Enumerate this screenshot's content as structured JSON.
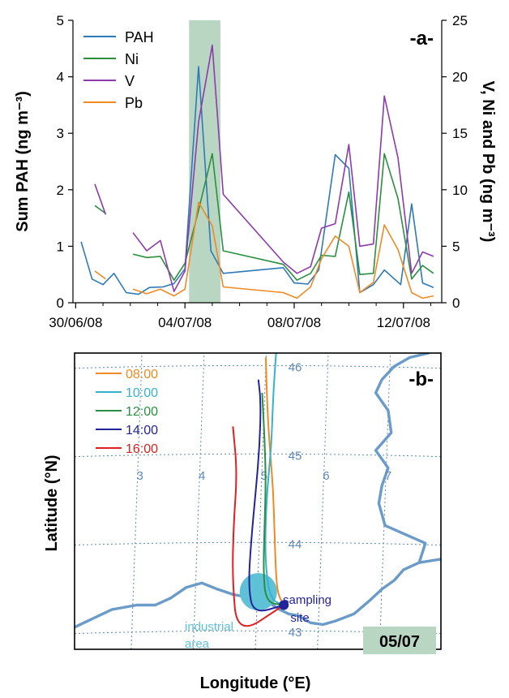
{
  "chart_data": [
    {
      "type": "line",
      "panel_label": "-a-",
      "ylabel": "Sum PAH (ng m⁻³)",
      "y2label": "V, Ni and Pb (ng m⁻³)",
      "ylim": [
        0,
        5
      ],
      "y2lim": [
        0,
        25
      ],
      "yticks": [
        "0",
        "1",
        "2",
        "3",
        "4",
        "5"
      ],
      "y2ticks": [
        "0",
        "5",
        "10",
        "15",
        "20",
        "25"
      ],
      "xticks": [
        "30/06/08",
        "04/07/08",
        "08/07/08",
        "12/07/08"
      ],
      "xtick_values": [
        0,
        4,
        8,
        12
      ],
      "xlim": [
        -0.1,
        13.4
      ],
      "highlight_range": [
        4.15,
        5.3
      ],
      "highlight_color": "#b9d6c3",
      "legend_position": "top-left",
      "series": [
        {
          "name": "PAH",
          "axis": "left",
          "color": "#2e7ab8",
          "points": [
            [
              0.2,
              1.08
            ],
            [
              0.6,
              0.42
            ],
            [
              1.0,
              0.32
            ],
            [
              1.4,
              0.52
            ],
            [
              1.85,
              0.18
            ],
            [
              2.3,
              0.15
            ],
            [
              2.7,
              0.27
            ],
            [
              3.2,
              0.28
            ],
            [
              3.6,
              0.34
            ],
            [
              4.0,
              0.6
            ],
            [
              4.5,
              4.18
            ],
            [
              4.95,
              0.92
            ],
            [
              5.4,
              0.52
            ],
            [
              7.6,
              0.62
            ],
            [
              8.0,
              0.35
            ],
            [
              8.5,
              0.33
            ],
            [
              8.9,
              0.58
            ],
            [
              9.5,
              2.62
            ],
            [
              10.0,
              2.38
            ],
            [
              10.4,
              0.18
            ],
            [
              10.9,
              0.32
            ],
            [
              11.3,
              0.58
            ],
            [
              11.9,
              0.32
            ],
            [
              12.3,
              1.75
            ],
            [
              12.7,
              0.35
            ],
            [
              13.1,
              0.27
            ]
          ]
        },
        {
          "name": "Ni",
          "axis": "right",
          "color": "#2a9040",
          "segments": [
            [
              [
                0.7,
                8.6
              ],
              [
                1.1,
                7.9
              ]
            ],
            [
              [
                2.1,
                4.3
              ],
              [
                2.6,
                4.0
              ],
              [
                3.1,
                4.1
              ],
              [
                3.6,
                2.0
              ],
              [
                4.0,
                3.5
              ],
              [
                4.5,
                8.2
              ],
              [
                5.0,
                13.2
              ],
              [
                5.4,
                4.6
              ],
              [
                7.6,
                3.4
              ],
              [
                8.1,
                2.0
              ],
              [
                8.6,
                2.6
              ],
              [
                9.0,
                4.2
              ],
              [
                9.5,
                4.1
              ],
              [
                10.0,
                9.8
              ],
              [
                10.4,
                2.5
              ],
              [
                10.9,
                2.6
              ],
              [
                11.3,
                13.2
              ],
              [
                11.8,
                9.2
              ],
              [
                12.3,
                2.1
              ],
              [
                12.7,
                3.3
              ],
              [
                13.1,
                2.6
              ]
            ]
          ]
        },
        {
          "name": "V",
          "axis": "right",
          "color": "#8e3aad",
          "segments": [
            [
              [
                0.7,
                10.5
              ],
              [
                1.1,
                7.8
              ]
            ],
            [
              [
                2.1,
                6.2
              ],
              [
                2.6,
                4.6
              ],
              [
                3.1,
                5.5
              ],
              [
                3.6,
                1.0
              ],
              [
                4.0,
                2.8
              ],
              [
                4.5,
                16.0
              ],
              [
                5.0,
                22.8
              ],
              [
                5.4,
                9.6
              ],
              [
                7.6,
                3.6
              ],
              [
                8.1,
                2.6
              ],
              [
                8.6,
                3.2
              ],
              [
                9.0,
                6.6
              ],
              [
                9.5,
                7.0
              ],
              [
                10.0,
                14.0
              ],
              [
                10.4,
                5.0
              ],
              [
                10.9,
                5.2
              ],
              [
                11.3,
                18.3
              ],
              [
                11.8,
                12.8
              ],
              [
                12.3,
                2.6
              ],
              [
                12.7,
                4.5
              ],
              [
                13.1,
                4.1
              ]
            ]
          ]
        },
        {
          "name": "Pb",
          "axis": "right",
          "color": "#f08a24",
          "segments": [
            [
              [
                0.7,
                2.8
              ],
              [
                1.1,
                2.1
              ]
            ],
            [
              [
                2.1,
                1.2
              ],
              [
                2.6,
                0.8
              ],
              [
                3.1,
                1.2
              ],
              [
                3.6,
                0.6
              ],
              [
                4.0,
                1.2
              ],
              [
                4.5,
                8.9
              ],
              [
                5.0,
                6.8
              ],
              [
                5.4,
                1.4
              ],
              [
                7.6,
                0.9
              ],
              [
                8.1,
                0.4
              ],
              [
                8.6,
                1.4
              ],
              [
                9.0,
                3.9
              ],
              [
                9.5,
                5.9
              ],
              [
                10.0,
                5.0
              ],
              [
                10.4,
                0.9
              ],
              [
                10.9,
                1.8
              ],
              [
                11.3,
                6.9
              ],
              [
                11.8,
                4.7
              ],
              [
                12.3,
                0.9
              ],
              [
                12.7,
                0.4
              ],
              [
                13.1,
                0.6
              ]
            ]
          ]
        }
      ]
    },
    {
      "type": "map",
      "panel_label": "-b-",
      "date_badge": "05/07",
      "badge_color": "#b9d6c3",
      "xlabel": "Longitude (°E)",
      "ylabel": "Latitude (°N)",
      "lon_labels": [
        "3",
        "4",
        "5",
        "6",
        "7"
      ],
      "lat_labels": [
        "46",
        "45",
        "44",
        "43"
      ],
      "lon_range": [
        2.0,
        7.9
      ],
      "lat_range": [
        42.8,
        46.15
      ],
      "lon_gridlines": [
        3,
        4,
        5,
        6,
        7
      ],
      "lat_gridlines": [
        43,
        44,
        45,
        46
      ],
      "industrial_area_label": "industrial area",
      "industrial_area_color": "#5fc1d6",
      "industrial_area_center": [
        4.96,
        43.45
      ],
      "sampling_site_label": "sampling site",
      "sampling_site_color": "#24249a",
      "sampling_site": [
        5.37,
        43.3
      ],
      "coast_color": "#6b9bc8",
      "trajectories": [
        {
          "time": "08:00",
          "color": "#f08a24",
          "points": [
            [
              5.37,
              43.3
            ],
            [
              5.27,
              43.43
            ],
            [
              5.24,
              43.7
            ],
            [
              5.22,
              44.1
            ],
            [
              5.2,
              44.6
            ],
            [
              5.14,
              45.1
            ],
            [
              5.1,
              45.6
            ],
            [
              5.08,
              46.1
            ]
          ]
        },
        {
          "time": "10:00",
          "color": "#36b2cf",
          "points": [
            [
              5.37,
              43.3
            ],
            [
              5.16,
              43.36
            ],
            [
              5.08,
              43.7
            ],
            [
              5.07,
              44.1
            ],
            [
              5.1,
              44.6
            ],
            [
              5.17,
              45.1
            ],
            [
              5.2,
              45.7
            ],
            [
              5.25,
              46.2
            ]
          ]
        },
        {
          "time": "12:00",
          "color": "#2a9040",
          "points": [
            [
              5.37,
              43.3
            ],
            [
              5.08,
              43.33
            ],
            [
              5.04,
              43.7
            ],
            [
              5.06,
              44.2
            ],
            [
              5.08,
              44.7
            ],
            [
              5.06,
              45.2
            ],
            [
              5.02,
              45.7
            ]
          ]
        },
        {
          "time": "14:00",
          "color": "#24249a",
          "points": [
            [
              5.37,
              43.3
            ],
            [
              4.88,
              43.2
            ],
            [
              4.8,
              43.5
            ],
            [
              4.84,
              44.0
            ],
            [
              4.92,
              44.6
            ],
            [
              4.98,
              45.1
            ],
            [
              5.0,
              45.6
            ],
            [
              4.96,
              45.85
            ]
          ]
        },
        {
          "time": "16:00",
          "color": "#e0201e",
          "points": [
            [
              5.37,
              43.3
            ],
            [
              4.62,
              42.95
            ],
            [
              4.54,
              43.6
            ],
            [
              4.56,
              44.2
            ],
            [
              4.62,
              44.8
            ],
            [
              4.55,
              45.32
            ]
          ]
        }
      ]
    }
  ]
}
